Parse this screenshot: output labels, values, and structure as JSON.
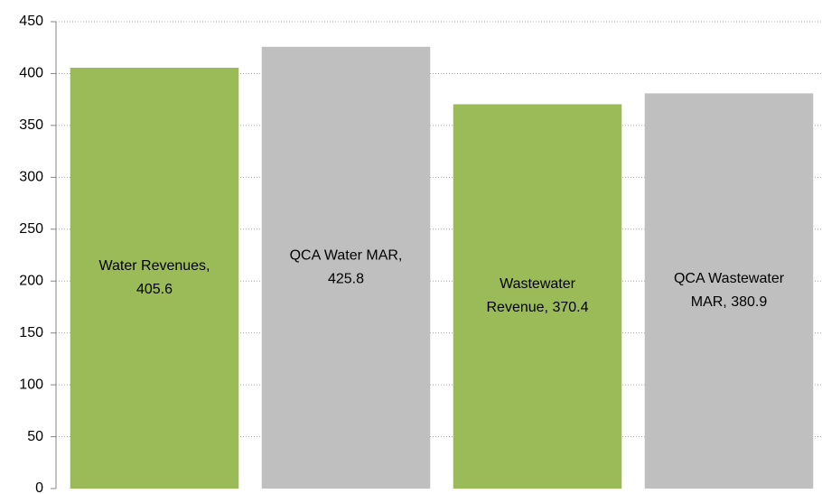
{
  "chart_data": {
    "type": "bar",
    "values": [
      405.6,
      425.8,
      370.4,
      380.9
    ],
    "value_labels": [
      [
        "Water Revenues,",
        "405.6"
      ],
      [
        "QCA Water MAR,",
        "425.8"
      ],
      [
        "Wastewater",
        "Revenue, 370.4"
      ],
      [
        "QCA Wastewater",
        "MAR, 380.9"
      ]
    ],
    "colors": [
      "#9bbb59",
      "#bfbfbf",
      "#9bbb59",
      "#bfbfbf"
    ],
    "ylim": [
      0,
      450
    ],
    "yticks": [
      0,
      50,
      100,
      150,
      200,
      250,
      300,
      350,
      400,
      450
    ],
    "grid": true
  }
}
